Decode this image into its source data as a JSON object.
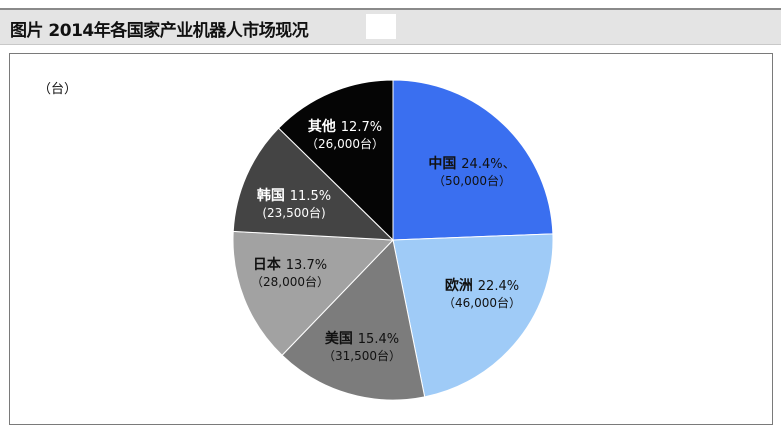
{
  "header": {
    "title": "图片  2014年各国家产业机器人市场现况"
  },
  "chart_data": {
    "type": "pie",
    "unit_label": "（台）",
    "slices": [
      {
        "name": "中国",
        "percent_label": "24.4%、",
        "value_label": "（50,000台）",
        "value": 50000,
        "color": "#3a6ff0",
        "text_color": "#111111"
      },
      {
        "name": "欧洲",
        "percent_label": "22.4%",
        "value_label": "（46,000台）",
        "value": 46000,
        "color": "#9fcbf7",
        "text_color": "#111111"
      },
      {
        "name": "美国",
        "percent_label": "15.4%",
        "value_label": "（31,500台）",
        "value": 31500,
        "color": "#7c7c7c",
        "text_color": "#111111"
      },
      {
        "name": "日本",
        "percent_label": "13.7%",
        "value_label": "（28,000台）",
        "value": 28000,
        "color": "#a2a2a2",
        "text_color": "#111111"
      },
      {
        "name": "韩国",
        "percent_label": "11.5%",
        "value_label": "(23,500台)",
        "value": 23500,
        "color": "#444444",
        "text_color": "#ffffff"
      },
      {
        "name": "其他",
        "percent_label": "12.7%",
        "value_label": "（26,000台）",
        "value": 26000,
        "color": "#050505",
        "text_color": "#ffffff"
      }
    ]
  }
}
